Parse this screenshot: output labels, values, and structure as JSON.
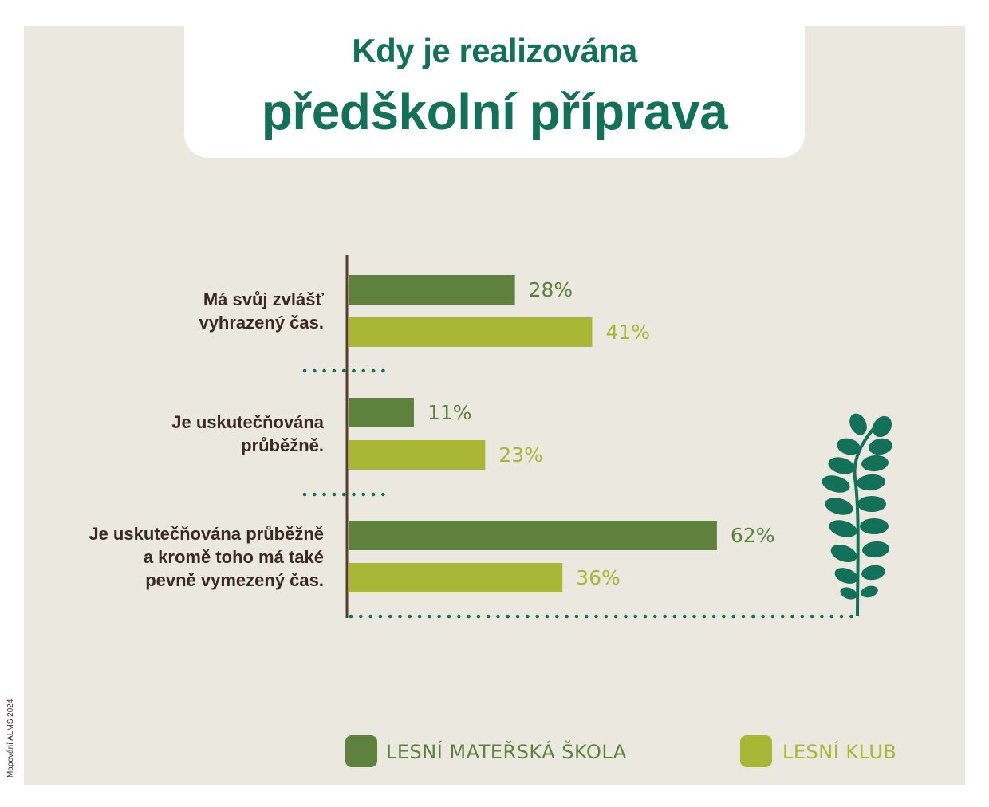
{
  "title": {
    "line1": "Kdy je realizována",
    "line2": "předškolní příprava"
  },
  "source_note": "Mapování ALMŠ 2024",
  "colors": {
    "dark_green": "#5f813e",
    "light_green": "#aab736",
    "title_green": "#137059",
    "axis_brown": "#5a3a28",
    "paper": "#ebe8df"
  },
  "chart_data": {
    "type": "bar",
    "orientation": "horizontal",
    "categories": [
      "Má svůj zvlášť vyhrazený čas.",
      "Je uskutečňována průběžně.",
      "Je uskutečňována průběžně a kromě toho má také pevně vymezený čas."
    ],
    "category_lines": [
      [
        "Má svůj zvlášť",
        "vyhrazený čas."
      ],
      [
        "Je uskutečňována",
        "průběžně."
      ],
      [
        "Je uskutečňována průběžně",
        "a kromě toho má také",
        "pevně vymezený čas."
      ]
    ],
    "series": [
      {
        "name": "LESNÍ MATEŘSKÁ ŠKOLA",
        "color": "#5f813e",
        "values": [
          28,
          11,
          62
        ]
      },
      {
        "name": "LESNÍ KLUB",
        "color": "#aab736",
        "values": [
          41,
          23,
          36
        ]
      }
    ],
    "data_labels": [
      [
        "28%",
        "11%",
        "62%"
      ],
      [
        "41%",
        "23%",
        "36%"
      ]
    ],
    "unit": "%",
    "xlim": [
      0,
      100
    ],
    "legend": "bottom"
  }
}
